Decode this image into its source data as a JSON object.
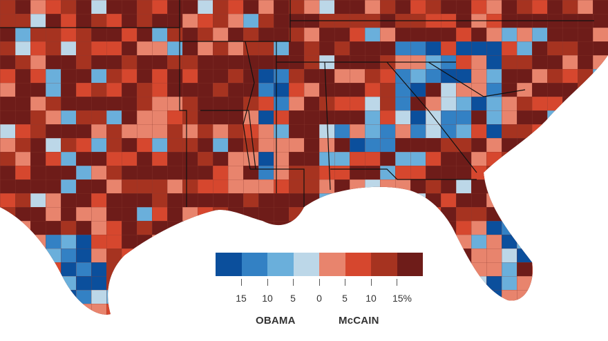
{
  "colors": {
    "water": "#ffffff",
    "dark_red": "#6e1c19",
    "red_3": "#a63320",
    "red_2": "#d6472e",
    "red_1": "#e8846d",
    "blue_1": "#bcd7e8",
    "blue_2": "#6aafdb",
    "blue_3": "#3381c4",
    "blue_4": "#0b4f9c",
    "state_line": "#111111",
    "county_line": "#9a4a3e"
  },
  "legend": {
    "swatches": [
      "#0b4f9c",
      "#3381c4",
      "#6aafdb",
      "#bcd7e8",
      "#e8846d",
      "#d6472e",
      "#a63320",
      "#6e1c19"
    ],
    "ticks": [
      "15",
      "10",
      "5",
      "0",
      "5",
      "10",
      "15%"
    ],
    "obama_label": "OBAMA",
    "mccain_label": "McCAIN"
  }
}
